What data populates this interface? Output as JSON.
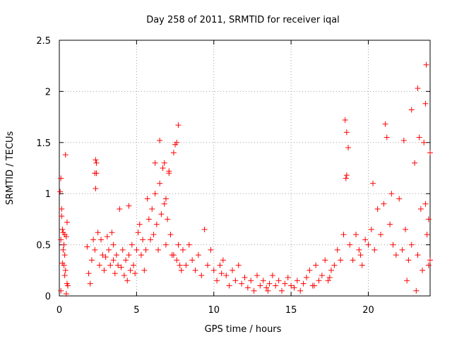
{
  "chart_data": {
    "type": "scatter",
    "title": "Day 258 of 2011, SRMTID for receiver iqal",
    "xlabel": "GPS time / hours",
    "ylabel": "SRMTID / TECUs",
    "xlim": [
      0,
      24
    ],
    "ylim": [
      0,
      2.5
    ],
    "xticks": [
      0,
      5,
      10,
      15,
      20
    ],
    "xtick_labels": [
      "0",
      "5",
      "10",
      "15",
      "20"
    ],
    "yticks": [
      0,
      0.5,
      1,
      1.5,
      2,
      2.5
    ],
    "ytick_labels": [
      "0",
      "0.5",
      "1",
      "1.5",
      "2",
      "2.5"
    ],
    "grid": true,
    "marker": "plus",
    "series": [
      {
        "name": "SRMTID",
        "color": "#ff0000",
        "x": [
          0.05,
          0.1,
          0.15,
          0.2,
          0.25,
          0.3,
          0.35,
          0.4,
          0.45,
          0.5,
          0.55,
          0.1,
          0.2,
          0.3,
          0.4,
          0.5,
          0.15,
          0.25,
          0.35,
          0.45,
          1.8,
          1.9,
          2.0,
          2.1,
          2.2,
          2.3,
          2.4,
          2.3,
          2.35,
          2.5,
          2.6,
          2.7,
          2.8,
          2.9,
          3.0,
          3.1,
          3.2,
          3.3,
          3.4,
          3.5,
          3.6,
          3.7,
          3.8,
          3.9,
          4.0,
          4.1,
          4.2,
          4.3,
          4.4,
          4.5,
          4.6,
          4.7,
          4.8,
          4.9,
          5.0,
          5.1,
          5.2,
          5.3,
          5.4,
          5.5,
          5.6,
          5.7,
          5.8,
          5.9,
          6.0,
          6.1,
          6.2,
          6.3,
          6.4,
          6.5,
          6.6,
          6.7,
          6.8,
          6.9,
          7.0,
          7.1,
          7.2,
          7.3,
          7.4,
          7.5,
          7.6,
          7.7,
          7.8,
          7.9,
          8.0,
          8.2,
          8.4,
          8.6,
          8.8,
          9.0,
          9.2,
          9.4,
          9.6,
          9.8,
          10.0,
          10.2,
          10.4,
          10.6,
          10.8,
          11.0,
          11.2,
          11.4,
          11.6,
          11.8,
          12.0,
          12.2,
          12.4,
          12.6,
          12.8,
          13.0,
          13.2,
          13.4,
          13.6,
          13.8,
          14.0,
          14.2,
          14.4,
          14.6,
          14.8,
          15.0,
          15.2,
          15.4,
          15.6,
          15.8,
          16.0,
          16.2,
          16.4,
          16.6,
          16.8,
          17.0,
          17.2,
          17.4,
          17.6,
          17.8,
          18.0,
          18.2,
          18.4,
          18.5,
          18.6,
          18.7,
          18.8,
          19.0,
          19.2,
          19.4,
          19.6,
          19.8,
          20.0,
          20.2,
          20.4,
          20.6,
          20.8,
          21.0,
          21.2,
          21.4,
          21.6,
          21.8,
          22.0,
          22.2,
          22.4,
          22.6,
          22.8,
          23.0,
          23.2,
          23.4,
          23.5,
          23.6,
          23.7,
          23.8,
          23.9,
          24.0,
          6.5,
          6.8,
          7.1,
          7.6,
          7.7,
          18.55,
          18.6,
          22.8,
          23.3,
          23.7,
          23.75,
          21.1,
          22.3,
          20.3,
          2.35,
          2.4,
          0.1,
          0.35,
          6.2,
          6.9,
          7.4,
          10.5,
          13.5,
          16.5,
          17.5,
          19.5,
          21.5,
          22.5,
          23.1,
          23.9,
          23.2,
          24.0,
          3.5,
          4.5
        ],
        "y": [
          1.02,
          1.15,
          0.85,
          0.65,
          0.45,
          0.3,
          0.2,
          1.38,
          0.58,
          0.72,
          0.1,
          0.05,
          0.32,
          0.5,
          0.25,
          0.12,
          0.78,
          0.62,
          0.4,
          0.02,
          0.48,
          0.22,
          0.12,
          0.35,
          0.55,
          0.45,
          1.3,
          1.2,
          1.05,
          0.62,
          0.3,
          0.55,
          0.4,
          0.25,
          0.38,
          0.58,
          0.45,
          0.3,
          0.62,
          0.35,
          0.22,
          0.4,
          0.3,
          0.85,
          0.28,
          0.45,
          0.2,
          0.35,
          0.15,
          0.4,
          0.25,
          0.5,
          0.3,
          0.22,
          0.45,
          0.62,
          0.7,
          0.4,
          0.55,
          0.25,
          0.45,
          0.95,
          0.75,
          0.55,
          0.85,
          0.6,
          1.0,
          0.7,
          0.45,
          1.1,
          0.8,
          1.25,
          0.9,
          0.5,
          0.75,
          1.2,
          0.6,
          0.4,
          1.4,
          1.48,
          0.35,
          0.5,
          0.3,
          0.25,
          0.45,
          0.3,
          0.5,
          0.35,
          0.25,
          0.4,
          0.2,
          0.65,
          0.3,
          0.45,
          0.25,
          0.15,
          0.3,
          0.35,
          0.2,
          0.1,
          0.25,
          0.15,
          0.3,
          0.12,
          0.18,
          0.08,
          0.15,
          0.05,
          0.2,
          0.1,
          0.15,
          0.08,
          0.12,
          0.2,
          0.1,
          0.15,
          0.05,
          0.12,
          0.18,
          0.1,
          0.08,
          0.15,
          0.05,
          0.12,
          0.18,
          0.25,
          0.1,
          0.3,
          0.15,
          0.2,
          0.35,
          0.15,
          0.25,
          0.3,
          0.45,
          0.35,
          0.6,
          1.72,
          1.6,
          1.45,
          0.5,
          0.35,
          0.6,
          0.45,
          0.3,
          0.55,
          0.5,
          0.65,
          0.45,
          0.85,
          0.6,
          0.9,
          1.55,
          0.7,
          0.5,
          0.4,
          0.95,
          0.45,
          0.65,
          0.35,
          0.5,
          1.3,
          0.4,
          0.85,
          0.25,
          1.5,
          0.9,
          0.6,
          0.3,
          1.4,
          1.52,
          1.3,
          1.22,
          1.5,
          1.67,
          1.15,
          1.18,
          1.82,
          1.55,
          1.88,
          2.26,
          1.68,
          1.52,
          1.1,
          1.33,
          1.2,
          0.55,
          0.6,
          1.3,
          0.95,
          0.4,
          0.22,
          0.05,
          0.1,
          0.18,
          0.4,
          1.0,
          0.15,
          0.05,
          0.75,
          2.03,
          0.35,
          0.5,
          0.88
        ]
      }
    ]
  }
}
